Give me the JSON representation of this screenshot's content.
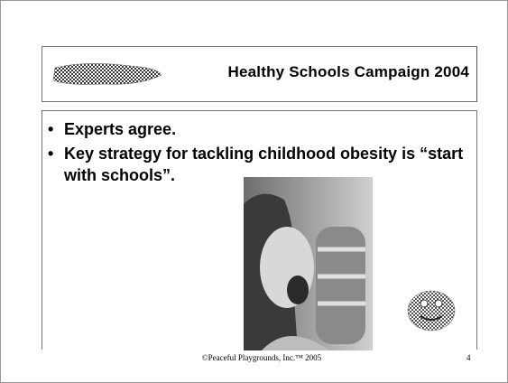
{
  "header": {
    "title": "Healthy Schools Campaign 2004"
  },
  "bullets": [
    "Experts agree.",
    "Key strategy for tackling childhood obesity is “start with schools”."
  ],
  "footer": {
    "copyright": "©Peaceful Playgrounds, Inc.™ 2005",
    "page_number": "4"
  }
}
